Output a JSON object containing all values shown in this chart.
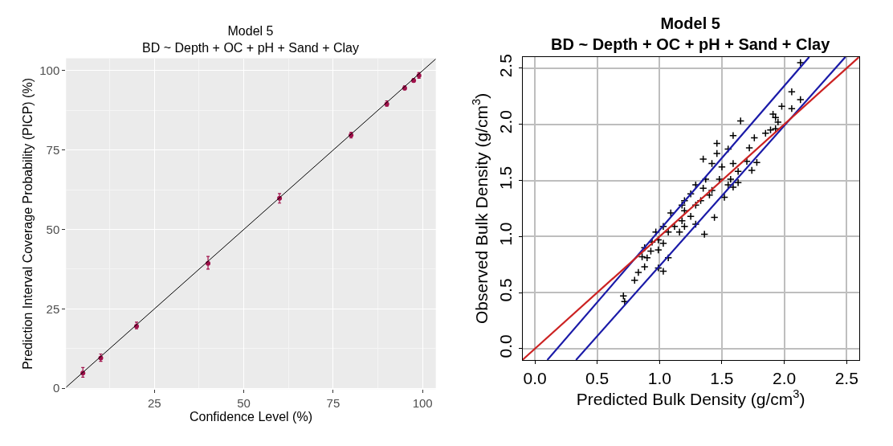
{
  "chart_data": [
    {
      "type": "scatter",
      "title": "Model 5",
      "subtitle": "BD ~ Depth + OC + pH + Sand + Clay",
      "xlabel": "Confidence Level (%)",
      "ylabel": "Prediction Interval Coverage Probability (PICP) (%)",
      "xlim": [
        0.3,
        103.7
      ],
      "ylim": [
        -0.3,
        103.9
      ],
      "xticks": [
        25,
        50,
        75,
        100
      ],
      "yticks": [
        0,
        25,
        50,
        75,
        100
      ],
      "grid": true,
      "series": [
        {
          "color": "#a0104a",
          "marker": "circle",
          "x": [
            5,
            10,
            20,
            40,
            60,
            80,
            90,
            95,
            97.5,
            99
          ],
          "values": [
            4.8,
            9.5,
            19.5,
            39.3,
            59.8,
            79.7,
            89.5,
            94.5,
            96.9,
            98.5
          ],
          "errors": [
            [
              3.5,
              6.5
            ],
            [
              8.5,
              10.8
            ],
            [
              18.7,
              20.8
            ],
            [
              37.5,
              41.5
            ],
            [
              58.3,
              61.3
            ],
            [
              78.8,
              80.6
            ],
            [
              88.8,
              90.5
            ],
            [
              94,
              95.2
            ],
            [
              96.4,
              97.5
            ],
            [
              97.6,
              99.4
            ]
          ]
        },
        {
          "type": "line",
          "marker": "none",
          "color": "#000000",
          "x": [
            0.3,
            103.7
          ],
          "values": [
            0.3,
            103.7
          ]
        }
      ]
    },
    {
      "type": "scatter",
      "title": "Model 5",
      "subtitle": "BD ~ Depth + OC + pH + Sand + Clay",
      "xlabel": "Predicted Bulk Density (g/cm$^{3}$)",
      "ylabel": "Observed Bulk Density (g/cm$^{3}$)",
      "xlim": [
        -0.1,
        2.6
      ],
      "ylim": [
        -0.1,
        2.6
      ],
      "xticks": [
        {
          "value": 0,
          "label": "0.0"
        },
        0.5,
        {
          "value": 1,
          "label": "1.0"
        },
        1.5,
        {
          "value": 2,
          "label": "2.0"
        },
        2.5
      ],
      "yticks": [
        {
          "value": 0,
          "label": "0.0"
        },
        0.5,
        {
          "value": 1,
          "label": "1.0"
        },
        1.5,
        {
          "value": 2,
          "label": "2.0"
        },
        2.5
      ],
      "grid": true,
      "series": [
        {
          "color": "#000000",
          "marker": "cross",
          "x": [
            0.71,
            0.72,
            0.8,
            0.83,
            0.88,
            0.9,
            0.93,
            0.99,
            1.03,
            1.07,
            0.97,
            0.99,
            1.12,
            1.18,
            1.25,
            1.2,
            1.29,
            1.25,
            1.33,
            1.4,
            1.42,
            1.35,
            1.44,
            1.36,
            1.29,
            1.52,
            1.59,
            1.57,
            1.35,
            1.46,
            1.55,
            1.59,
            1.63,
            1.7,
            1.74,
            1.78,
            1.72,
            1.76,
            1.59,
            1.85,
            1.89,
            1.93,
            1.65,
            1.91,
            1.93,
            1.98,
            2.06,
            2.13,
            2.06,
            2.13,
            1.07,
            1.16,
            1.03,
            1.2,
            1.09,
            1.48,
            1.55,
            0.99,
            1.03,
            0.86,
            1.63,
            1.46,
            1.42,
            1.5,
            1.95,
            1.37,
            1.29,
            1.18,
            0.94,
            0.88,
            1.2
          ],
          "values": [
            0.47,
            0.42,
            0.61,
            0.68,
            0.73,
            0.81,
            0.87,
            0.88,
            0.94,
            0.81,
            1.04,
            0.97,
            1.09,
            1.14,
            1.18,
            1.23,
            1.28,
            1.38,
            1.32,
            1.37,
            1.41,
            1.43,
            1.17,
            1.02,
            1.11,
            1.35,
            1.44,
            1.51,
            1.69,
            1.74,
            1.78,
            1.65,
            1.58,
            1.67,
            1.59,
            1.66,
            1.79,
            1.88,
            1.9,
            1.92,
            1.95,
            1.96,
            2.03,
            2.09,
            2.06,
            2.16,
            2.14,
            2.22,
            2.29,
            2.55,
            1.04,
            1.04,
            1.09,
            1.32,
            1.21,
            1.51,
            1.46,
            0.72,
            0.69,
            0.82,
            1.48,
            1.83,
            1.65,
            1.62,
            2.02,
            1.51,
            1.46,
            1.28,
            0.95,
            0.9,
            1.09
          ]
        },
        {
          "type": "line",
          "marker": "none",
          "color": "#1a1aa8",
          "x": [
            0.1,
            2.2
          ],
          "values": [
            -0.1,
            2.6
          ]
        },
        {
          "type": "line",
          "marker": "none",
          "color": "#1a1aa8",
          "x": [
            0.33,
            2.49
          ],
          "values": [
            -0.1,
            2.6
          ]
        },
        {
          "type": "line",
          "marker": "none",
          "color": "#cc2222",
          "x": [
            -0.1,
            2.6
          ],
          "values": [
            -0.1,
            2.6
          ]
        }
      ]
    }
  ]
}
